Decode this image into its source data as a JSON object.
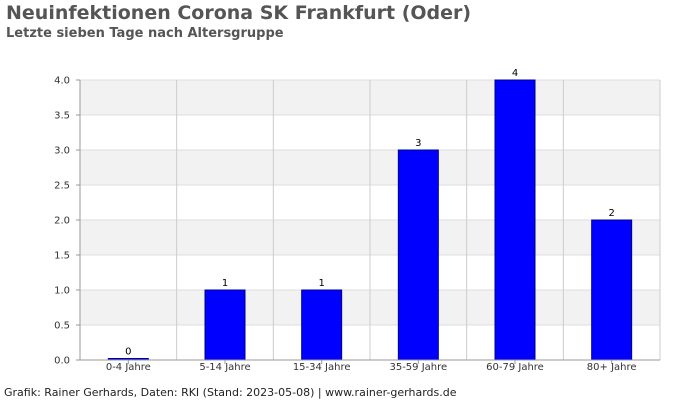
{
  "header": {
    "title": "Neuinfektionen Corona SK Frankfurt (Oder)",
    "subtitle": "Letzte sieben Tage nach Altersgruppe"
  },
  "footer": {
    "text": "Grafik: Rainer Gerhards, Daten: RKI (Stand: 2023-05-08) | www.rainer-gerhards.de"
  },
  "colors": {
    "bar_fill": "#0000ff",
    "bar_stroke": "#00008b",
    "band_light": "#ffffff",
    "band_dark": "#f2f2f2",
    "grid_line": "#dddddd",
    "axis_line": "#999999"
  },
  "chart_data": {
    "type": "bar",
    "title": "Neuinfektionen Corona SK Frankfurt (Oder)",
    "subtitle": "Letzte sieben Tage nach Altersgruppe",
    "xlabel": "",
    "ylabel": "",
    "categories": [
      "0-4 Jahre",
      "5-14 Jahre",
      "15-34 Jahre",
      "35-59 Jahre",
      "60-79 Jahre",
      "80+ Jahre"
    ],
    "values": [
      0,
      1,
      1,
      3,
      4,
      2
    ],
    "value_labels": [
      "0",
      "1",
      "1",
      "3",
      "4",
      "2"
    ],
    "ylim": [
      0,
      4
    ],
    "yticks": [
      "0.0",
      "0.5",
      "1.0",
      "1.5",
      "2.0",
      "2.5",
      "3.0",
      "3.5",
      "4.0"
    ],
    "grid": true,
    "legend": "none"
  }
}
